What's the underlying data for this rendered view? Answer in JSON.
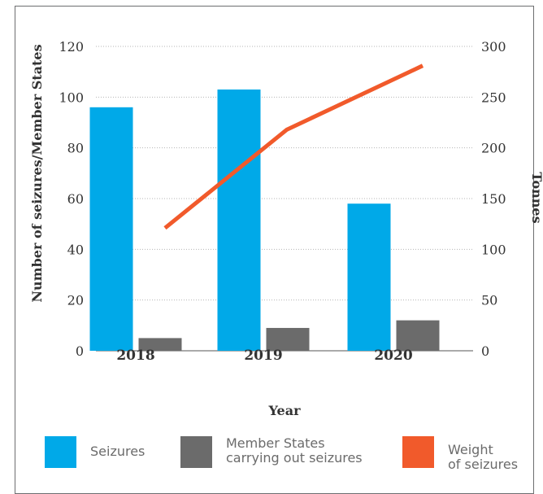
{
  "chart_data": {
    "type": "bar",
    "categories": [
      "2018",
      "2019",
      "2020"
    ],
    "series": [
      {
        "name": "Seizures",
        "kind": "bar",
        "axis": "left",
        "color": "#00a9e8",
        "values": [
          96,
          103,
          58
        ]
      },
      {
        "name": "Member States carrying out seizures",
        "kind": "bar",
        "axis": "left",
        "color": "#6b6b6b",
        "values": [
          5,
          9,
          12
        ]
      },
      {
        "name": "Weight of seizures",
        "kind": "line",
        "axis": "right",
        "color": "#f15a2b",
        "values": [
          121,
          218,
          281
        ]
      }
    ],
    "xlabel": "Year",
    "ylabel": "Number of seizures/Member States",
    "y2label": "Tonnes",
    "ylim": [
      0,
      120
    ],
    "y2lim": [
      0,
      300
    ],
    "yticks": [
      "0",
      "20",
      "40",
      "60",
      "80",
      "100",
      "120"
    ],
    "y2ticks": [
      "0",
      "50",
      "100",
      "150",
      "200",
      "250",
      "300"
    ],
    "grid": "horizontal dotted",
    "legend_position": "bottom"
  },
  "legend": [
    {
      "label": "Seizures",
      "color": "#00a9e8"
    },
    {
      "label": "Member States\ncarrying out seizures",
      "color": "#6b6b6b"
    },
    {
      "label": "Weight\nof seizures",
      "color": "#f15a2b"
    }
  ]
}
